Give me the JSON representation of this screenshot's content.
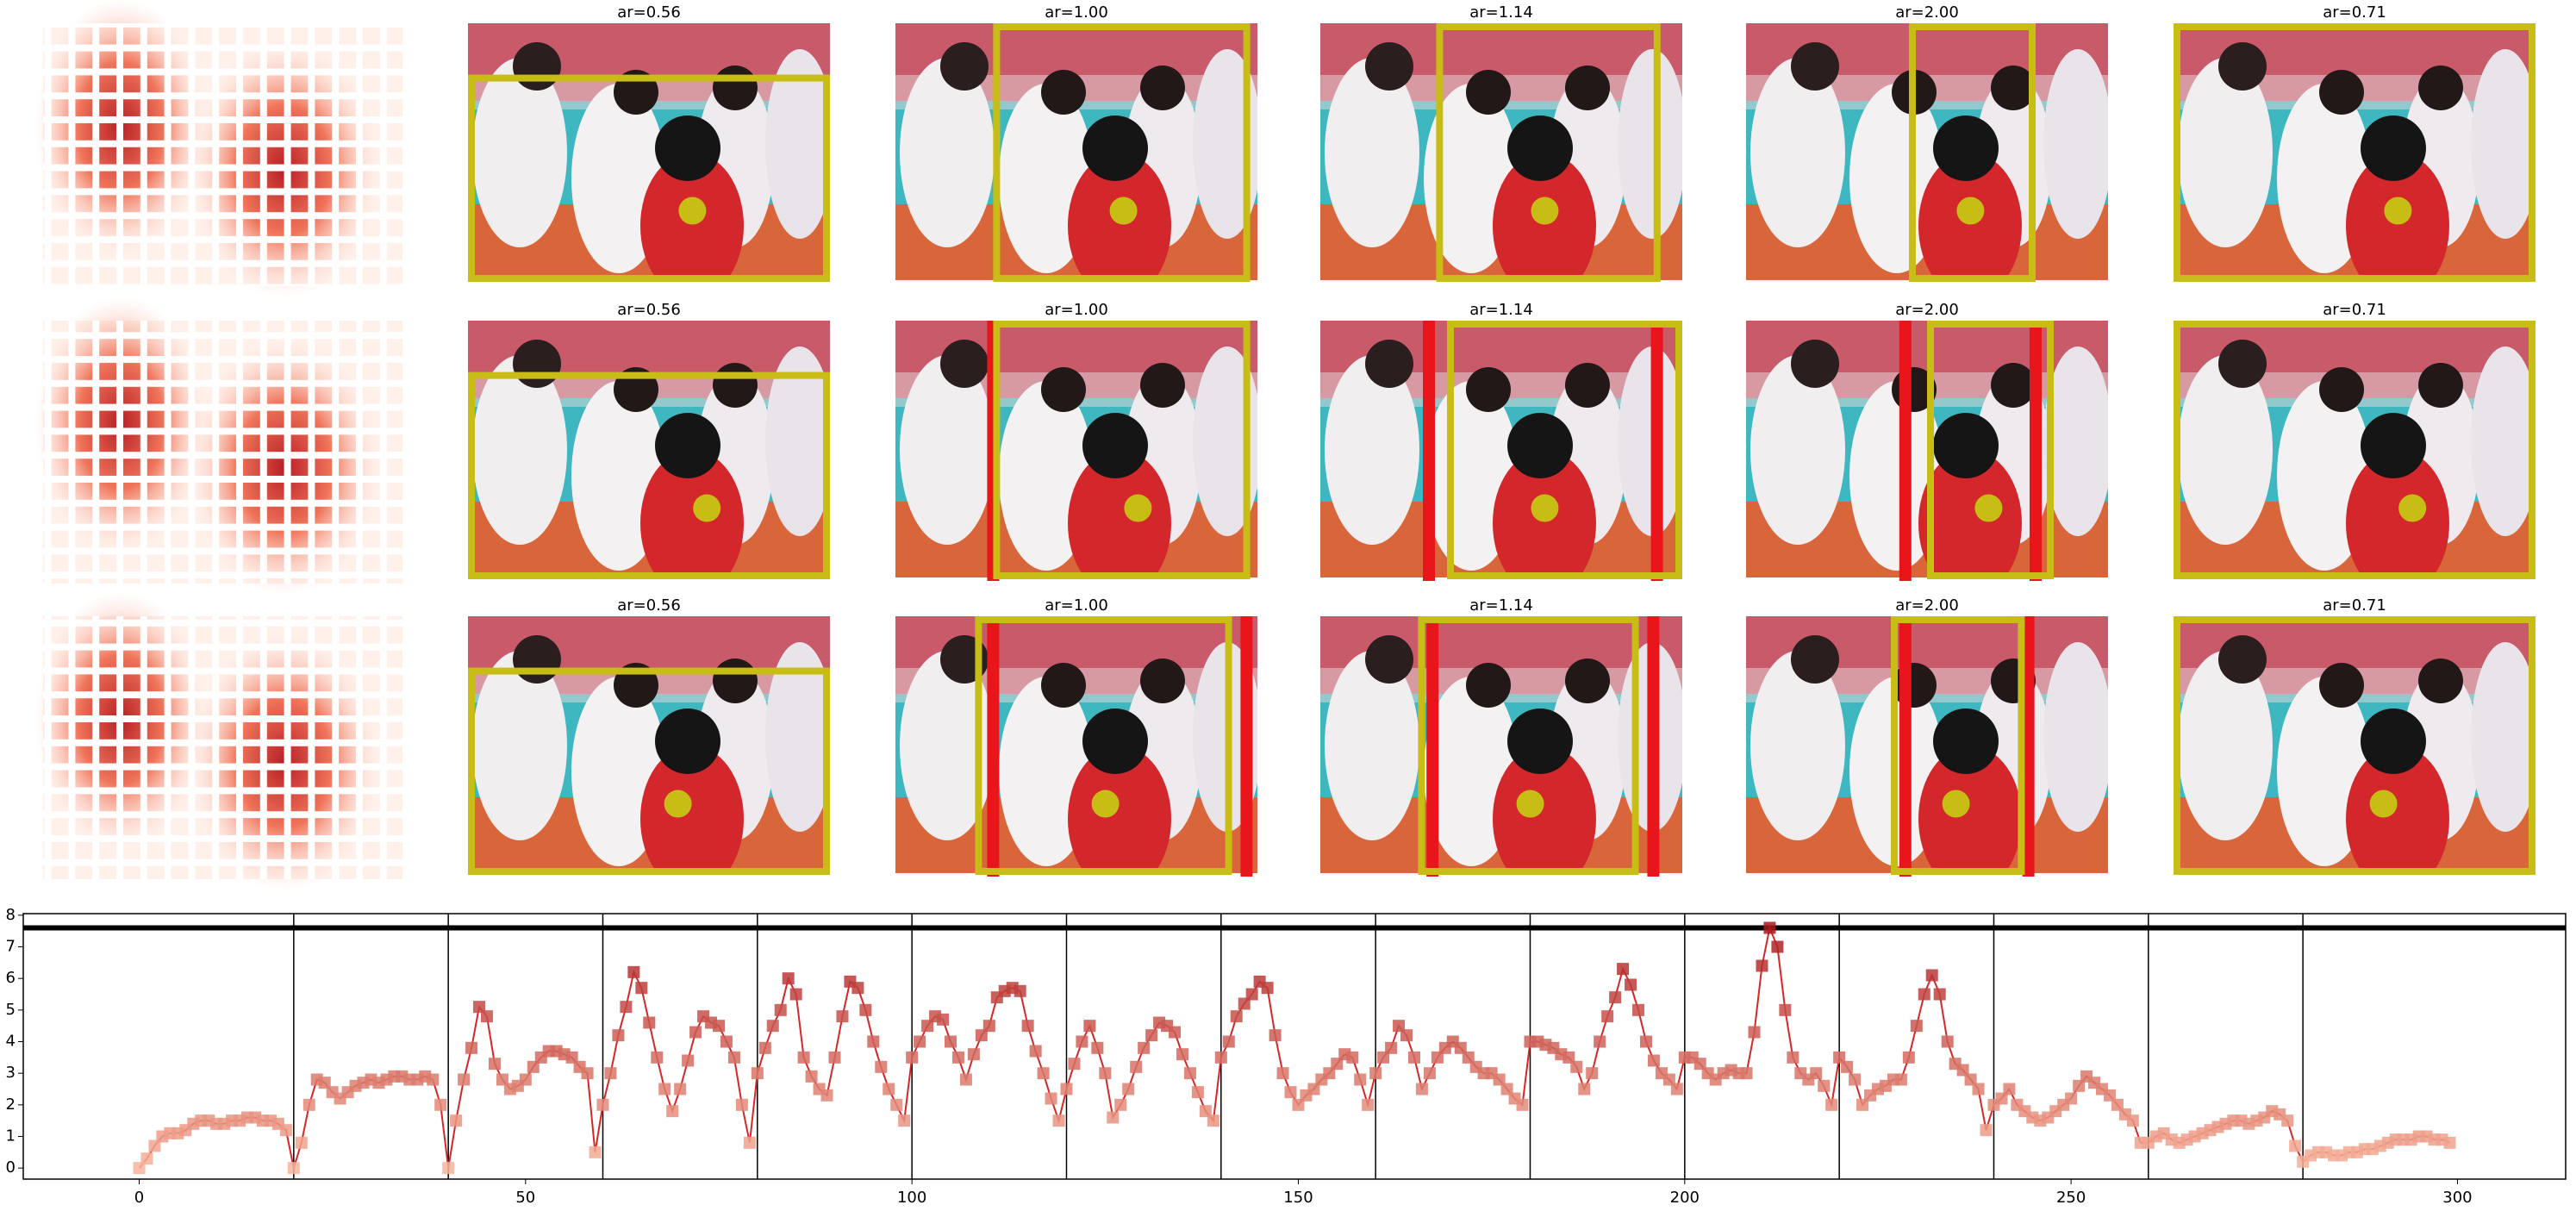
{
  "panel_rows": [
    [
      "ar=0.56",
      "ar=1.00",
      "ar=1.14",
      "ar=2.00",
      "ar=0.71"
    ],
    [
      "ar=0.56",
      "ar=1.00",
      "ar=1.14",
      "ar=2.00",
      "ar=0.71"
    ],
    [
      "ar=0.56",
      "ar=1.00",
      "ar=1.14",
      "ar=2.00",
      "ar=0.71"
    ]
  ],
  "chart_data": {
    "type": "line",
    "x": [
      0,
      1,
      2,
      3,
      4,
      5,
      6,
      7,
      8,
      9,
      10,
      11,
      12,
      13,
      14,
      15,
      16,
      17,
      18,
      19,
      20,
      21,
      22,
      23,
      24,
      25,
      26,
      27,
      28,
      29,
      30,
      31,
      32,
      33,
      34,
      35,
      36,
      37,
      38,
      39,
      40,
      41,
      42,
      43,
      44,
      45,
      46,
      47,
      48,
      49,
      50,
      51,
      52,
      53,
      54,
      55,
      56,
      57,
      58,
      59,
      60,
      61,
      62,
      63,
      64,
      65,
      66,
      67,
      68,
      69,
      70,
      71,
      72,
      73,
      74,
      75,
      76,
      77,
      78,
      79,
      80,
      81,
      82,
      83,
      84,
      85,
      86,
      87,
      88,
      89,
      90,
      91,
      92,
      93,
      94,
      95,
      96,
      97,
      98,
      99,
      100,
      101,
      102,
      103,
      104,
      105,
      106,
      107,
      108,
      109,
      110,
      111,
      112,
      113,
      114,
      115,
      116,
      117,
      118,
      119,
      120,
      121,
      122,
      123,
      124,
      125,
      126,
      127,
      128,
      129,
      130,
      131,
      132,
      133,
      134,
      135,
      136,
      137,
      138,
      139,
      140,
      141,
      142,
      143,
      144,
      145,
      146,
      147,
      148,
      149,
      150,
      151,
      152,
      153,
      154,
      155,
      156,
      157,
      158,
      159,
      160,
      161,
      162,
      163,
      164,
      165,
      166,
      167,
      168,
      169,
      170,
      171,
      172,
      173,
      174,
      175,
      176,
      177,
      178,
      179,
      180,
      181,
      182,
      183,
      184,
      185,
      186,
      187,
      188,
      189,
      190,
      191,
      192,
      193,
      194,
      195,
      196,
      197,
      198,
      199,
      200,
      201,
      202,
      203,
      204,
      205,
      206,
      207,
      208,
      209,
      210,
      211,
      212,
      213,
      214,
      215,
      216,
      217,
      218,
      219,
      220,
      221,
      222,
      223,
      224,
      225,
      226,
      227,
      228,
      229,
      230,
      231,
      232,
      233,
      234,
      235,
      236,
      237,
      238,
      239,
      240,
      241,
      242,
      243,
      244,
      245,
      246,
      247,
      248,
      249,
      250,
      251,
      252,
      253,
      254,
      255,
      256,
      257,
      258,
      259,
      260,
      261,
      262,
      263,
      264,
      265,
      266,
      267,
      268,
      269,
      270,
      271,
      272,
      273,
      274,
      275,
      276,
      277,
      278,
      279,
      280,
      281,
      282,
      283,
      284,
      285,
      286,
      287,
      288,
      289,
      290,
      291,
      292,
      293,
      294,
      295,
      296,
      297,
      298,
      299
    ],
    "values": [
      0,
      0.3,
      0.7,
      1.0,
      1.1,
      1.1,
      1.2,
      1.4,
      1.5,
      1.5,
      1.4,
      1.4,
      1.5,
      1.5,
      1.6,
      1.6,
      1.5,
      1.5,
      1.4,
      1.2,
      0,
      0.8,
      2.0,
      2.8,
      2.7,
      2.4,
      2.2,
      2.4,
      2.6,
      2.7,
      2.8,
      2.7,
      2.8,
      2.9,
      2.9,
      2.8,
      2.8,
      2.9,
      2.8,
      2.0,
      0,
      1.5,
      2.8,
      3.8,
      5.1,
      4.8,
      3.3,
      2.8,
      2.5,
      2.6,
      2.8,
      3.2,
      3.5,
      3.7,
      3.7,
      3.6,
      3.5,
      3.2,
      3.0,
      0.5,
      2.0,
      3.0,
      4.2,
      5.1,
      6.2,
      5.7,
      4.6,
      3.5,
      2.5,
      1.8,
      2.5,
      3.4,
      4.3,
      4.8,
      4.6,
      4.5,
      4.0,
      3.5,
      2.0,
      0.8,
      3.0,
      3.8,
      4.5,
      5.0,
      6.0,
      5.5,
      3.5,
      2.9,
      2.5,
      2.3,
      3.5,
      4.8,
      5.9,
      5.7,
      5.0,
      4.0,
      3.2,
      2.5,
      2.0,
      1.5,
      3.5,
      4.0,
      4.5,
      4.8,
      4.7,
      4.0,
      3.5,
      2.8,
      3.6,
      4.2,
      4.5,
      5.4,
      5.6,
      5.7,
      5.6,
      4.5,
      3.7,
      3.0,
      2.2,
      1.5,
      2.5,
      3.3,
      4.0,
      4.5,
      3.8,
      3.0,
      1.6,
      2.0,
      2.5,
      3.2,
      3.8,
      4.2,
      4.6,
      4.5,
      4.3,
      3.6,
      3.0,
      2.4,
      1.8,
      1.5,
      3.5,
      4.0,
      4.8,
      5.2,
      5.5,
      5.9,
      5.7,
      4.2,
      3.0,
      2.4,
      2.0,
      2.3,
      2.5,
      2.8,
      3.0,
      3.3,
      3.6,
      3.5,
      2.8,
      2.0,
      3.0,
      3.5,
      3.8,
      4.5,
      4.2,
      3.5,
      2.5,
      3.0,
      3.5,
      3.8,
      4.0,
      3.8,
      3.5,
      3.2,
      3.0,
      3.0,
      2.8,
      2.5,
      2.2,
      2.0,
      4.0,
      4.0,
      3.9,
      3.8,
      3.6,
      3.5,
      3.2,
      2.5,
      3.0,
      4.0,
      4.8,
      5.4,
      6.3,
      5.8,
      5.0,
      4.0,
      3.4,
      3.0,
      2.8,
      2.5,
      3.5,
      3.5,
      3.3,
      3.0,
      2.8,
      3.0,
      3.1,
      3.0,
      3.0,
      4.3,
      6.4,
      7.6,
      7.0,
      5.0,
      3.5,
      3.0,
      2.8,
      3.0,
      2.6,
      2.0,
      3.5,
      3.2,
      2.8,
      2.0,
      2.3,
      2.5,
      2.6,
      2.8,
      2.8,
      3.5,
      4.5,
      5.5,
      6.1,
      5.5,
      4.0,
      3.3,
      3.1,
      2.8,
      2.5,
      1.2,
      2.0,
      2.2,
      2.5,
      2.0,
      1.8,
      1.6,
      1.5,
      1.6,
      1.8,
      2.0,
      2.2,
      2.6,
      2.9,
      2.7,
      2.5,
      2.3,
      2.0,
      1.7,
      1.5,
      0.8,
      0.8,
      1.0,
      1.1,
      0.9,
      0.8,
      0.9,
      1.0,
      1.1,
      1.2,
      1.3,
      1.4,
      1.5,
      1.5,
      1.4,
      1.5,
      1.6,
      1.8,
      1.7,
      1.5,
      0.7,
      0.2,
      0.4,
      0.5,
      0.5,
      0.4,
      0.4,
      0.5,
      0.5,
      0.6,
      0.6,
      0.7,
      0.8,
      0.9,
      0.9,
      0.9,
      1.0,
      1.0,
      0.9,
      0.9,
      0.8
    ],
    "color": "#d62728",
    "marker_colors": [
      "#fcbba1",
      "#a50f15"
    ],
    "threshold": 7.6,
    "vlines": [
      20,
      40,
      60,
      80,
      100,
      120,
      140,
      160,
      180,
      200,
      220,
      240,
      260,
      280
    ],
    "xlim": [
      -15,
      314
    ],
    "ylim": [
      -0.35,
      8.05
    ],
    "xticks": [
      0,
      50,
      100,
      150,
      200,
      250,
      300
    ],
    "yticks": [
      0,
      1,
      2,
      3,
      4,
      5,
      6,
      7,
      8
    ]
  }
}
